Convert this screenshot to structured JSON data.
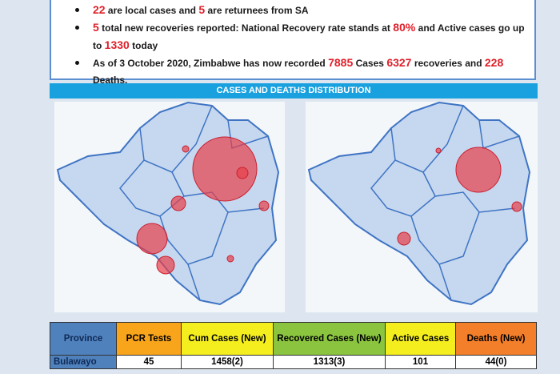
{
  "bullets": [
    {
      "parts": [
        {
          "text": "22",
          "color": "#e0202a"
        },
        {
          "text": "are local cases and"
        },
        {
          "text": "5",
          "color": "#e0202a"
        },
        {
          "text": "are returnees from SA"
        }
      ]
    },
    {
      "parts": [
        {
          "text": "5",
          "color": "#e0202a"
        },
        {
          "text": "total new recoveries reported: National Recovery rate stands at"
        },
        {
          "text": "80%",
          "color": "#e0202a"
        },
        {
          "text": "and Active cases go up to"
        },
        {
          "text": "1330",
          "color": "#e0202a"
        },
        {
          "text": "today"
        }
      ]
    },
    {
      "parts": [
        {
          "text": "As of 3 October 2020, Zimbabwe has now recorded"
        },
        {
          "text": "7885",
          "color": "#e0202a"
        },
        {
          "text": "Cases"
        },
        {
          "text": "6327",
          "color": "#e0202a"
        },
        {
          "text": "recoveries and"
        },
        {
          "text": "228",
          "color": "#e0202a"
        },
        {
          "text": "Deaths."
        }
      ]
    }
  ],
  "banner": "CASES AND DEATHS DISTRIBUTION",
  "table": {
    "header": [
      "Province",
      "PCR Tests",
      "Cum Cases (New)",
      "Recovered Cases (New)",
      "Active Cases",
      "Deaths (New)"
    ],
    "rows": [
      [
        "Bulawayo",
        "45",
        "1458(2)",
        "1313(3)",
        "101",
        "44(0)"
      ]
    ]
  }
}
